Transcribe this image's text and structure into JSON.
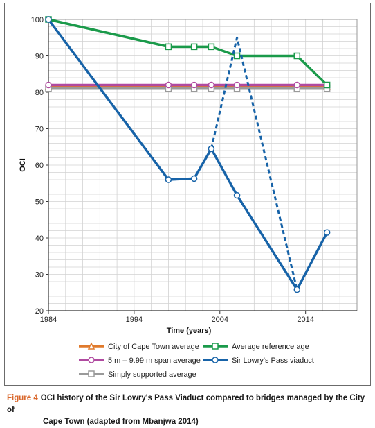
{
  "chart_data": {
    "type": "line",
    "xlabel": "Time (years)",
    "ylabel": "OCI",
    "xlim": [
      1984,
      2020
    ],
    "ylim": [
      20,
      100
    ],
    "x_ticks": [
      1984,
      1994,
      2004,
      2014
    ],
    "y_ticks": [
      20,
      30,
      40,
      50,
      60,
      70,
      80,
      90,
      100
    ],
    "grid": true,
    "legend_position": "bottom",
    "series": [
      {
        "name": "City of Cape Town average",
        "color": "#e07a2c",
        "marker": "triangle",
        "style": "solid",
        "points": [
          [
            1984,
            81.5
          ],
          [
            2016.5,
            81.5
          ]
        ]
      },
      {
        "name": "5 m – 9.99 m span average",
        "color": "#b04aa0",
        "marker": "circle",
        "style": "solid",
        "points": [
          [
            1984,
            82
          ],
          [
            1998,
            82
          ],
          [
            2001,
            82
          ],
          [
            2003,
            82
          ],
          [
            2006,
            82
          ],
          [
            2013,
            82
          ],
          [
            2016.5,
            82
          ]
        ]
      },
      {
        "name": "Simply supported average",
        "color": "#9a9a9a",
        "marker": "square",
        "style": "solid",
        "points": [
          [
            1984,
            81
          ],
          [
            1998,
            81
          ],
          [
            2001,
            81
          ],
          [
            2003,
            81
          ],
          [
            2006,
            81
          ],
          [
            2013,
            81
          ],
          [
            2016.5,
            81
          ]
        ]
      },
      {
        "name": "Average reference age",
        "color": "#1a9a4a",
        "marker": "square",
        "style": "solid",
        "points": [
          [
            1984,
            100
          ],
          [
            1998,
            92.5
          ],
          [
            2001,
            92.5
          ],
          [
            2003,
            92.5
          ],
          [
            2006,
            90
          ],
          [
            2013,
            90
          ],
          [
            2016.5,
            82
          ]
        ]
      },
      {
        "name": "Sir Lowry's Pass viaduct",
        "color": "#1763a8",
        "marker": "circle",
        "style": "solid",
        "points": [
          [
            1984,
            100
          ],
          [
            1998,
            56
          ],
          [
            2001,
            56.3
          ],
          [
            2003,
            64.5
          ],
          [
            2006,
            51.7
          ],
          [
            2013,
            25.8
          ],
          [
            2016.5,
            41.5
          ]
        ]
      },
      {
        "name": "",
        "color": "#1763a8",
        "marker": "none",
        "style": "dashed",
        "points": [
          [
            2003,
            64.5
          ],
          [
            2006,
            95
          ],
          [
            2013,
            25.8
          ]
        ]
      }
    ]
  },
  "caption": {
    "label": "Figure 4",
    "text_line1": "OCI history of the Sir Lowry's Pass Viaduct compared to bridges managed by the City of",
    "text_line2": "Cape Town (adapted from Mbanjwa 2014)"
  }
}
